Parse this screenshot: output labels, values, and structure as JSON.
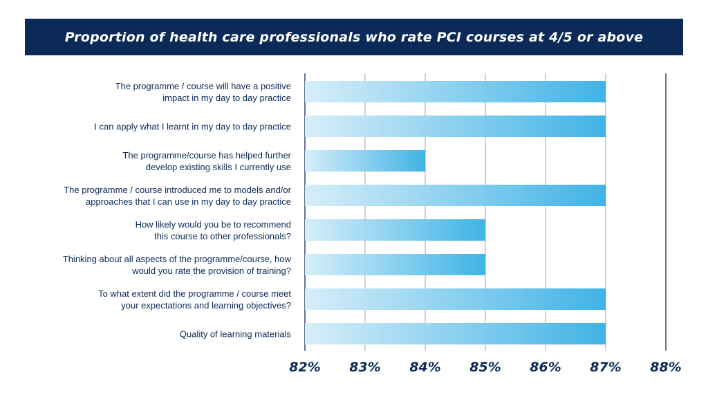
{
  "chart_data": {
    "type": "bar",
    "orientation": "horizontal",
    "title": "Proportion of health care professionals who rate PCI courses at 4/5 or above",
    "categories": [
      [
        "The programme / course will have a positive",
        "impact in my day to day practice"
      ],
      [
        "I can apply what I learnt in my day to day practice"
      ],
      [
        "The programme/course has helped further",
        "develop existing skills I currently use"
      ],
      [
        "The programme / course introduced me to models and/or",
        "approaches that I can use in my day to day practice"
      ],
      [
        "How likely would you be to recommend",
        "this course to other professionals?"
      ],
      [
        "Thinking about all aspects of the programme/course, how",
        "would you rate the provision of training?"
      ],
      [
        "To what extent did the programme / course meet",
        "your expectations and learning objectives?"
      ],
      [
        "Quality of learning materials"
      ]
    ],
    "values": [
      87,
      87,
      84,
      87,
      85,
      85,
      87,
      87
    ],
    "xlim": [
      82,
      88
    ],
    "xticks": [
      "82%",
      "83%",
      "84%",
      "85%",
      "86%",
      "87%",
      "88%"
    ],
    "grid": true,
    "colors": {
      "bar_start": "#d6eef9",
      "bar_end": "#3fb3e6",
      "axis": "#0b2a57",
      "grid": "#7d8fa8",
      "title_bg": "#0b2a57"
    }
  }
}
